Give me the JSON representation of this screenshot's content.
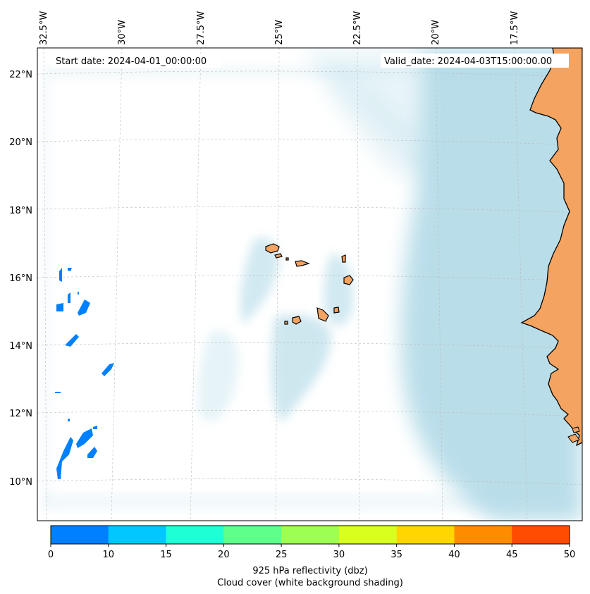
{
  "map": {
    "start_date": "Start date: 2024-04-01_00:00:00",
    "valid_date": "Valid_date: 2024-04-03T15:00:00.00",
    "lon_labels": [
      "32.5°W",
      "30°W",
      "27.5°W",
      "25°W",
      "22.5°W",
      "20°W",
      "17.5°W"
    ],
    "lat_labels": [
      "22°N",
      "20°N",
      "18°N",
      "16°N",
      "14°N",
      "12°N",
      "10°N"
    ],
    "land_color": "#f4a460",
    "cloud_color": "#add8e6",
    "colorbar": {
      "title_line1": "925 hPa reflectivity (dbz)",
      "title_line2": "Cloud cover (white background shading)",
      "ticks": [
        "0",
        "10",
        "15",
        "20",
        "25",
        "30",
        "35",
        "40",
        "45",
        "50"
      ],
      "colors": [
        "#0080ff",
        "#00c8ff",
        "#1effd6",
        "#5eff8a",
        "#9cff52",
        "#d8ff1e",
        "#ffd600",
        "#ff8c00",
        "#ff4c00"
      ]
    }
  }
}
